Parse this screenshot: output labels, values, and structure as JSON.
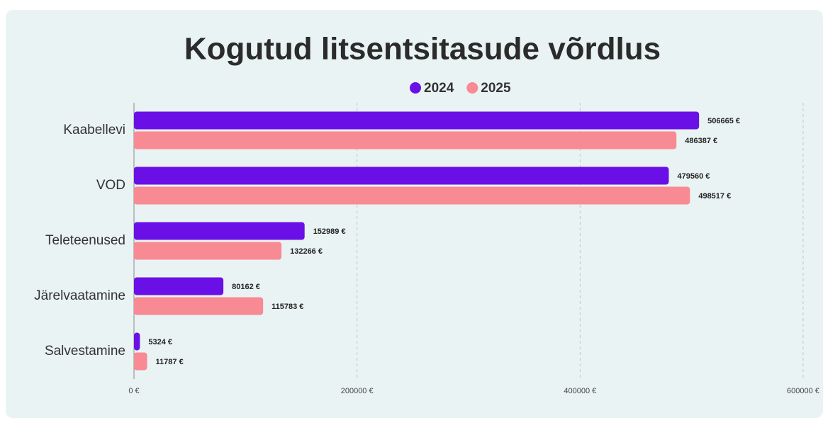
{
  "chart_data": {
    "type": "bar",
    "orientation": "horizontal",
    "title": "Kogutud litsentsitasude võrdlus",
    "categories": [
      "Kaabellevi",
      "VOD",
      "Teleteenused",
      "Järelvaatamine",
      "Salvestamine"
    ],
    "series": [
      {
        "name": "2024",
        "color": "#6a10e6",
        "values": [
          506665,
          479560,
          152989,
          80162,
          5324
        ],
        "value_labels": [
          "506665 €",
          "479560 €",
          "152989 €",
          "80162 €",
          "5324 €"
        ]
      },
      {
        "name": "2025",
        "color": "#f88a94",
        "values": [
          486387,
          498517,
          132266,
          115783,
          11787
        ],
        "value_labels": [
          "486387 €",
          "498517 €",
          "132266 €",
          "115783 €",
          "11787 €"
        ]
      }
    ],
    "xlim": [
      0,
      600000
    ],
    "xticks": [
      {
        "value": 0,
        "label": "0 €"
      },
      {
        "value": 200000,
        "label": "200000 €"
      },
      {
        "value": 400000,
        "label": "400000 €"
      },
      {
        "value": 600000,
        "label": "600000 €"
      }
    ],
    "grid": true,
    "legend": "top"
  }
}
